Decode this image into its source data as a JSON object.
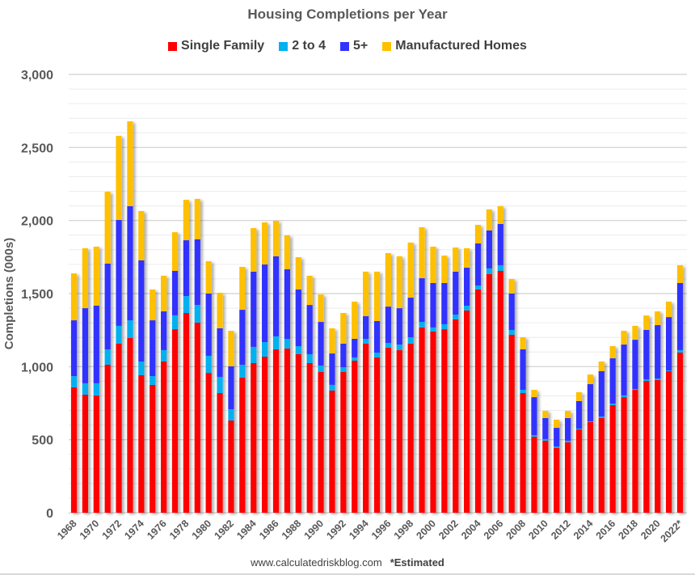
{
  "chart_data": {
    "type": "bar",
    "stacked": true,
    "title": "Housing Completions per Year",
    "xlabel": "",
    "ylabel": "Completions (000s)",
    "ylim": [
      0,
      3000
    ],
    "yticks": [
      0,
      500,
      1000,
      1500,
      2000,
      2500,
      3000
    ],
    "ytick_labels": [
      "0",
      "500",
      "1,000",
      "1,500",
      "2,000",
      "2,500",
      "3,000"
    ],
    "grid": true,
    "legend_position": "top-center",
    "categories": [
      "1968",
      "1969",
      "1970",
      "1971",
      "1972",
      "1973",
      "1974",
      "1975",
      "1976",
      "1977",
      "1978",
      "1979",
      "1980",
      "1981",
      "1982",
      "1983",
      "1984",
      "1985",
      "1986",
      "1987",
      "1988",
      "1989",
      "1990",
      "1991",
      "1992",
      "1993",
      "1994",
      "1995",
      "1996",
      "1997",
      "1998",
      "1999",
      "2000",
      "2001",
      "2002",
      "2003",
      "2004",
      "2005",
      "2006",
      "2007",
      "2008",
      "2009",
      "2010",
      "2011",
      "2012",
      "2013",
      "2014",
      "2015",
      "2016",
      "2017",
      "2018",
      "2019",
      "2020",
      "2021",
      "2022*"
    ],
    "xtick_labels": [
      "1968",
      "1970",
      "1972",
      "1974",
      "1976",
      "1978",
      "1980",
      "1982",
      "1984",
      "1986",
      "1988",
      "1990",
      "1992",
      "1994",
      "1996",
      "1998",
      "2000",
      "2002",
      "2004",
      "2006",
      "2008",
      "2010",
      "2012",
      "2014",
      "2016",
      "2018",
      "2020",
      "2022*"
    ],
    "series": [
      {
        "name": "Single Family",
        "color": "#ff0000",
        "values": [
          858,
          808,
          802,
          1013,
          1157,
          1196,
          941,
          875,
          1035,
          1256,
          1367,
          1301,
          957,
          819,
          631,
          924,
          1024,
          1068,
          1118,
          1124,
          1085,
          1024,
          963,
          836,
          963,
          1041,
          1157,
          1063,
          1129,
          1113,
          1157,
          1268,
          1240,
          1256,
          1323,
          1384,
          1528,
          1633,
          1655,
          1218,
          819,
          520,
          493,
          443,
          482,
          570,
          620,
          648,
          736,
          791,
          841,
          902,
          908,
          969,
          1096
        ]
      },
      {
        "name": "2 to 4",
        "color": "#00b0f0",
        "values": [
          77,
          78,
          84,
          105,
          122,
          121,
          94,
          60,
          78,
          95,
          116,
          121,
          117,
          111,
          77,
          89,
          111,
          100,
          89,
          66,
          55,
          61,
          44,
          39,
          33,
          22,
          33,
          33,
          33,
          38,
          44,
          38,
          28,
          34,
          33,
          33,
          27,
          39,
          39,
          33,
          22,
          11,
          11,
          11,
          11,
          6,
          5,
          11,
          11,
          12,
          6,
          11,
          11,
          5,
          17
        ]
      },
      {
        "name": "5+",
        "color": "#3333ff",
        "values": [
          382,
          514,
          531,
          587,
          725,
          781,
          692,
          382,
          265,
          304,
          382,
          449,
          426,
          332,
          294,
          376,
          515,
          531,
          548,
          476,
          388,
          337,
          299,
          215,
          161,
          127,
          155,
          216,
          249,
          249,
          271,
          299,
          304,
          282,
          294,
          260,
          288,
          260,
          282,
          249,
          277,
          260,
          144,
          127,
          155,
          188,
          255,
          310,
          310,
          348,
          337,
          338,
          365,
          365,
          459
        ]
      },
      {
        "name": "Manufactured Homes",
        "color": "#ffc000",
        "values": [
          321,
          410,
          404,
          492,
          575,
          581,
          338,
          211,
          244,
          265,
          277,
          277,
          221,
          243,
          243,
          294,
          298,
          288,
          243,
          233,
          221,
          200,
          188,
          172,
          210,
          255,
          305,
          338,
          366,
          355,
          377,
          349,
          249,
          188,
          165,
          133,
          127,
          144,
          122,
          100,
          83,
          50,
          49,
          56,
          49,
          61,
          66,
          66,
          83,
          94,
          95,
          99,
          94,
          106,
          122
        ]
      }
    ]
  },
  "footer": {
    "source": "www.calculatedriskblog.com",
    "note": "*Estimated"
  }
}
